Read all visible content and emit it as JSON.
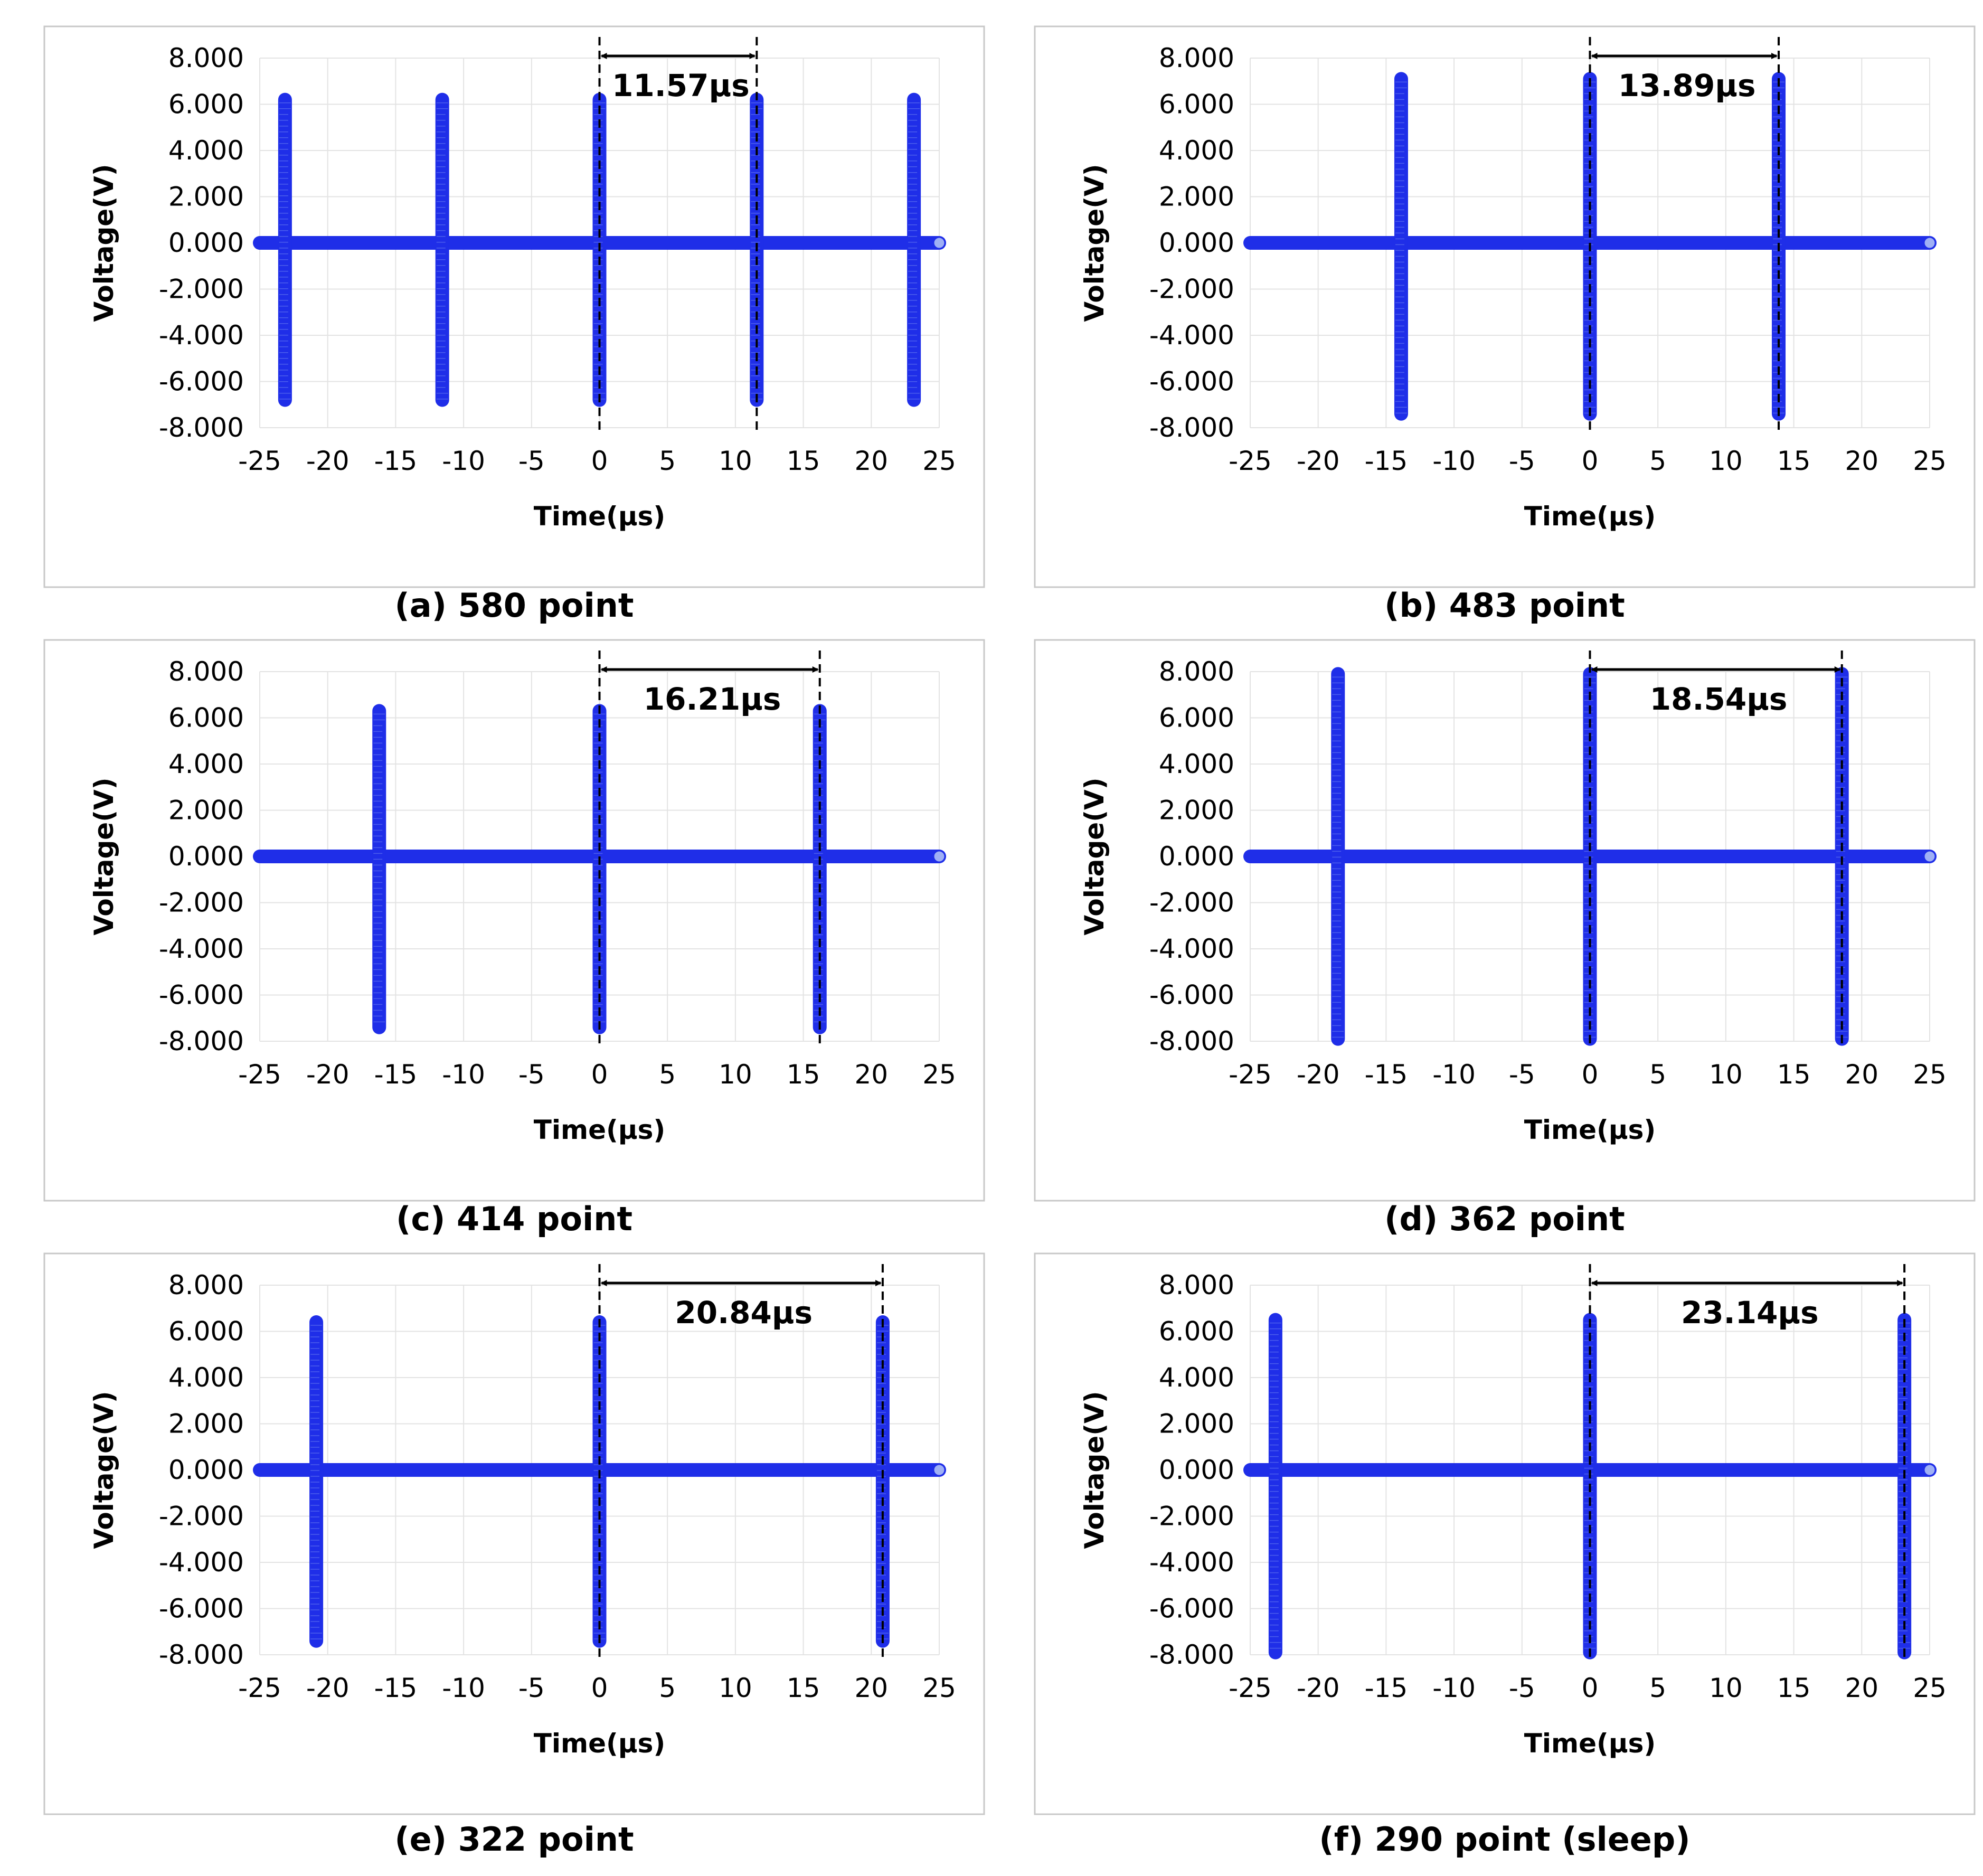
{
  "colors": {
    "series": "#1f2ee8",
    "series_light": "#6f86f0",
    "grid": "#e3e3e3",
    "frame": "#c8c8c8",
    "text": "#000000"
  },
  "chart_data": [
    {
      "type": "scatter",
      "caption": "(a) 580 point",
      "xlabel": "Time(μs)",
      "ylabel": "Voltage(V)",
      "xlim": [
        -25,
        25
      ],
      "ylim": [
        -8,
        8
      ],
      "xticks": [
        "-25",
        "-20",
        "-15",
        "-10",
        "-5",
        "0",
        "5",
        "10",
        "15",
        "20",
        "25"
      ],
      "yticks": [
        "-8.000",
        "-6.000",
        "-4.000",
        "-2.000",
        "0.000",
        "2.000",
        "4.000",
        "6.000",
        "8.000"
      ],
      "grid": true,
      "series": [
        {
          "name": "Voltage",
          "baseline_x": [
            -25,
            25
          ],
          "baseline_y": 0,
          "pulse_x": [
            -23.14,
            -11.57,
            0,
            11.57,
            23.14
          ],
          "pulse_ymin": -6.8,
          "pulse_ymax": 6.2
        }
      ],
      "period_marker": {
        "x_start": 0,
        "x_end": 11.57,
        "label": "11.57μs"
      }
    },
    {
      "type": "scatter",
      "caption": "(b) 483 point",
      "xlabel": "Time(μs)",
      "ylabel": "Voltage(V)",
      "xlim": [
        -25,
        25
      ],
      "ylim": [
        -8,
        8
      ],
      "xticks": [
        "-25",
        "-20",
        "-15",
        "-10",
        "-5",
        "0",
        "5",
        "10",
        "15",
        "20",
        "25"
      ],
      "yticks": [
        "-8.000",
        "-6.000",
        "-4.000",
        "-2.000",
        "0.000",
        "2.000",
        "4.000",
        "6.000",
        "8.000"
      ],
      "grid": true,
      "series": [
        {
          "name": "Voltage",
          "baseline_x": [
            -25,
            25
          ],
          "baseline_y": 0,
          "pulse_x": [
            -13.89,
            0,
            13.89
          ],
          "pulse_ymin": -7.4,
          "pulse_ymax": 7.1
        }
      ],
      "period_marker": {
        "x_start": 0,
        "x_end": 13.89,
        "label": "13.89μs"
      }
    },
    {
      "type": "scatter",
      "caption": "(c) 414 point",
      "xlabel": "Time(μs)",
      "ylabel": "Voltage(V)",
      "xlim": [
        -25,
        25
      ],
      "ylim": [
        -8,
        8
      ],
      "xticks": [
        "-25",
        "-20",
        "-15",
        "-10",
        "-5",
        "0",
        "5",
        "10",
        "15",
        "20",
        "25"
      ],
      "yticks": [
        "-8.000",
        "-6.000",
        "-4.000",
        "-2.000",
        "0.000",
        "2.000",
        "4.000",
        "6.000",
        "8.000"
      ],
      "grid": true,
      "series": [
        {
          "name": "Voltage",
          "baseline_x": [
            -25,
            25
          ],
          "baseline_y": 0,
          "pulse_x": [
            -16.21,
            0,
            16.21
          ],
          "pulse_ymin": -7.4,
          "pulse_ymax": 6.3
        }
      ],
      "period_marker": {
        "x_start": 0,
        "x_end": 16.21,
        "label": "16.21μs"
      }
    },
    {
      "type": "scatter",
      "caption": "(d) 362 point",
      "xlabel": "Time(μs)",
      "ylabel": "Voltage(V)",
      "xlim": [
        -25,
        25
      ],
      "ylim": [
        -8,
        8
      ],
      "xticks": [
        "-25",
        "-20",
        "-15",
        "-10",
        "-5",
        "0",
        "5",
        "10",
        "15",
        "20",
        "25"
      ],
      "yticks": [
        "-8.000",
        "-6.000",
        "-4.000",
        "-2.000",
        "0.000",
        "2.000",
        "4.000",
        "6.000",
        "8.000"
      ],
      "grid": true,
      "series": [
        {
          "name": "Voltage",
          "baseline_x": [
            -25,
            25
          ],
          "baseline_y": 0,
          "pulse_x": [
            -18.54,
            0,
            18.54
          ],
          "pulse_ymin": -7.9,
          "pulse_ymax": 7.9
        }
      ],
      "period_marker": {
        "x_start": 0,
        "x_end": 18.54,
        "label": "18.54μs"
      }
    },
    {
      "type": "scatter",
      "caption": "(e) 322 point",
      "xlabel": "Time(μs)",
      "ylabel": "Voltage(V)",
      "xlim": [
        -25,
        25
      ],
      "ylim": [
        -8,
        8
      ],
      "xticks": [
        "-25",
        "-20",
        "-15",
        "-10",
        "-5",
        "0",
        "5",
        "10",
        "15",
        "20",
        "25"
      ],
      "yticks": [
        "-8.000",
        "-6.000",
        "-4.000",
        "-2.000",
        "0.000",
        "2.000",
        "4.000",
        "6.000",
        "8.000"
      ],
      "grid": true,
      "series": [
        {
          "name": "Voltage",
          "baseline_x": [
            -25,
            25
          ],
          "baseline_y": 0,
          "pulse_x": [
            -20.84,
            0,
            20.84
          ],
          "pulse_ymin": -7.4,
          "pulse_ymax": 6.4
        }
      ],
      "period_marker": {
        "x_start": 0,
        "x_end": 20.84,
        "label": "20.84μs"
      }
    },
    {
      "type": "scatter",
      "caption": "(f) 290 point (sleep)",
      "xlabel": "Time(μs)",
      "ylabel": "Voltage(V)",
      "xlim": [
        -25,
        25
      ],
      "ylim": [
        -8,
        8
      ],
      "xticks": [
        "-25",
        "-20",
        "-15",
        "-10",
        "-5",
        "0",
        "5",
        "10",
        "15",
        "20",
        "25"
      ],
      "yticks": [
        "-8.000",
        "-6.000",
        "-4.000",
        "-2.000",
        "0.000",
        "2.000",
        "4.000",
        "6.000",
        "8.000"
      ],
      "grid": true,
      "series": [
        {
          "name": "Voltage",
          "baseline_x": [
            -25,
            25
          ],
          "baseline_y": 0,
          "pulse_x": [
            -23.14,
            0,
            23.14
          ],
          "pulse_ymin": -7.9,
          "pulse_ymax": 6.5
        }
      ],
      "period_marker": {
        "x_start": 0,
        "x_end": 23.14,
        "label": "23.14μs"
      }
    }
  ]
}
